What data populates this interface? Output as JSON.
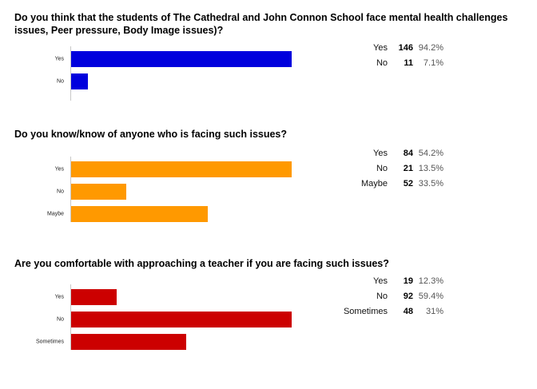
{
  "chart_data": [
    {
      "type": "bar",
      "orientation": "horizontal",
      "title": "Do you think that the students of The Cathedral and John Connon School face mental health challenges\nissues, Peer pressure, Body Image issues)?",
      "categories": [
        "Yes",
        "No"
      ],
      "values": [
        146,
        11
      ],
      "percents": [
        "94.2%",
        "7.1%"
      ],
      "color": "#0000dd",
      "xlim": [
        0,
        146
      ]
    },
    {
      "type": "bar",
      "orientation": "horizontal",
      "title": "Do you know/know of anyone who is facing such issues?",
      "categories": [
        "Yes",
        "No",
        "Maybe"
      ],
      "values": [
        84,
        21,
        52
      ],
      "percents": [
        "54.2%",
        "13.5%",
        "33.5%"
      ],
      "color": "#ff9900",
      "xlim": [
        0,
        84
      ]
    },
    {
      "type": "bar",
      "orientation": "horizontal",
      "title": "Are you comfortable with approaching a teacher if you are facing such issues?",
      "categories": [
        "Yes",
        "No",
        "Sometimes"
      ],
      "values": [
        19,
        92,
        48
      ],
      "percents": [
        "12.3%",
        "59.4%",
        "31%"
      ],
      "color": "#cc0000",
      "xlim": [
        0,
        92
      ]
    }
  ]
}
